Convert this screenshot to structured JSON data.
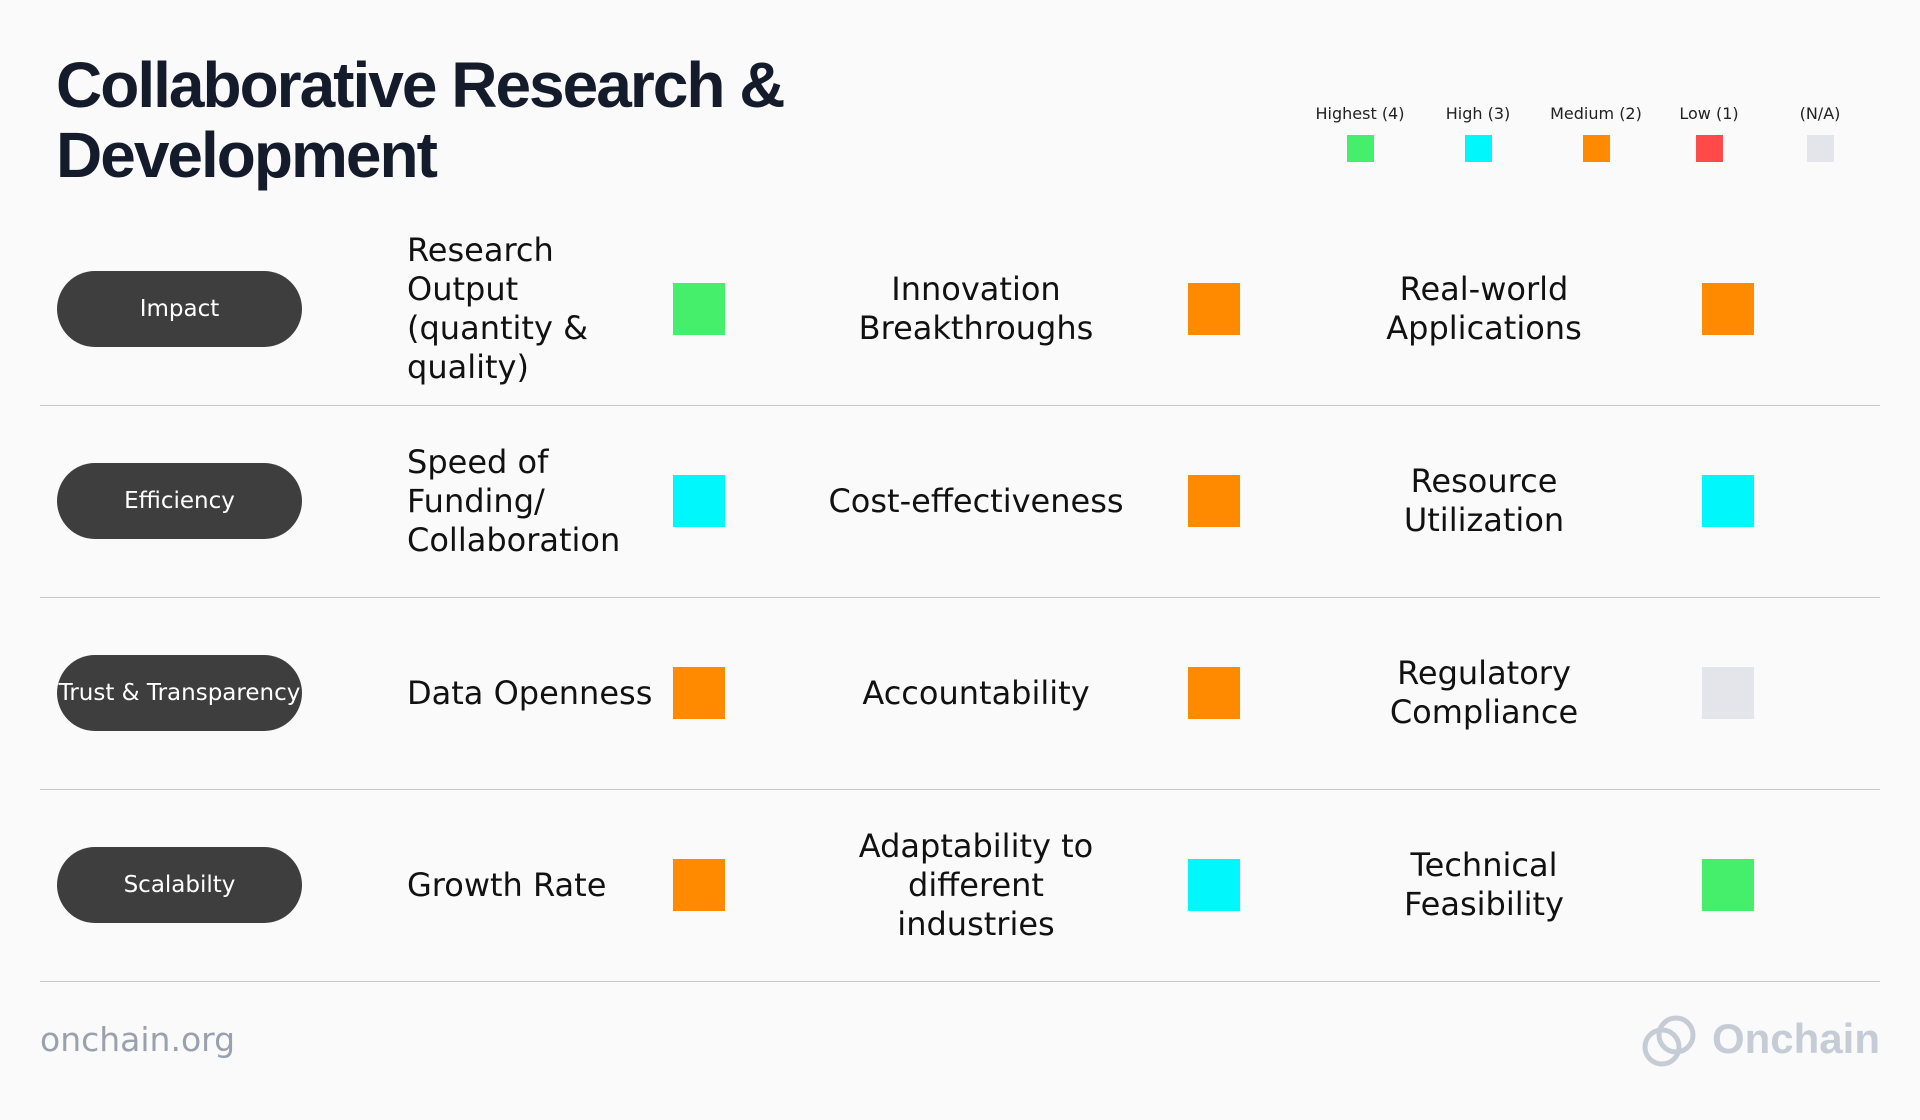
{
  "header": {
    "title": "Collaborative Research & Development"
  },
  "legend": {
    "items": [
      {
        "label": "Highest (4)",
        "value": 4,
        "color": "#45ef6b"
      },
      {
        "label": "High (3)",
        "value": 3,
        "color": "#00f8fc"
      },
      {
        "label": "Medium (2)",
        "value": 2,
        "color": "#ff8a00"
      },
      {
        "label": "Low (1)",
        "value": 1,
        "color": "#ff4a4a"
      },
      {
        "label": "(N/A)",
        "value": null,
        "color": "#e4e5ea"
      }
    ]
  },
  "rows": [
    {
      "category": "Impact",
      "cells": [
        {
          "label": "Research Output (quantity & quality)",
          "rating": 4
        },
        {
          "label": "Innovation Breakthroughs",
          "rating": 2
        },
        {
          "label": "Real-world Applications",
          "rating": 2
        }
      ]
    },
    {
      "category": "Efficiency",
      "cells": [
        {
          "label": "Speed of Funding/ Collaboration",
          "rating": 3
        },
        {
          "label": "Cost-effectiveness",
          "rating": 2
        },
        {
          "label": "Resource Utilization",
          "rating": 3
        }
      ]
    },
    {
      "category": "Trust & Transparency",
      "cells": [
        {
          "label": "Data Openness",
          "rating": 2
        },
        {
          "label": "Accountability",
          "rating": 2
        },
        {
          "label": "Regulatory Compliance",
          "rating": null
        }
      ]
    },
    {
      "category": "Scalabilty",
      "cells": [
        {
          "label": "Growth Rate",
          "rating": 2
        },
        {
          "label": "Adaptability to different industries",
          "rating": 3
        },
        {
          "label": "Technical Feasibility",
          "rating": 4
        }
      ]
    }
  ],
  "footer": {
    "site": "onchain.org",
    "brand": "Onchain"
  }
}
